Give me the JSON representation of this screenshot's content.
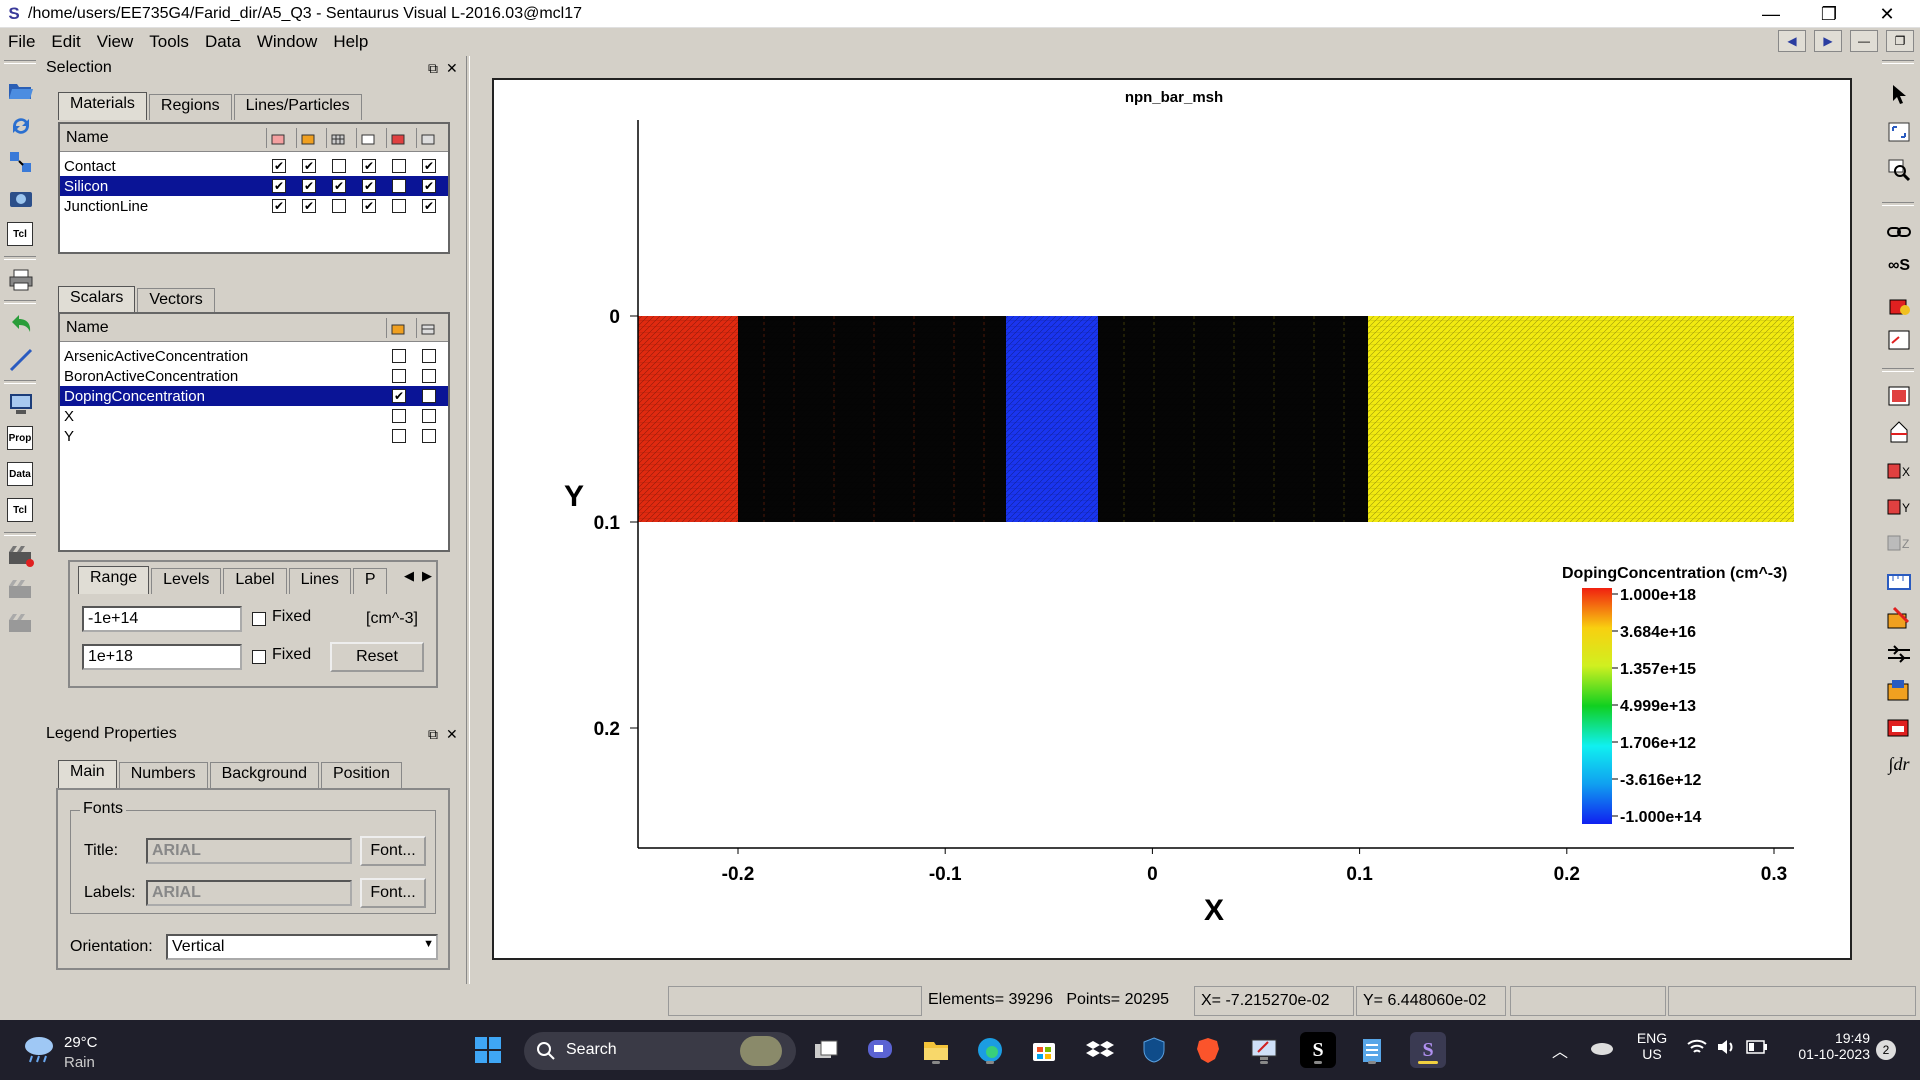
{
  "window": {
    "title": "/home/users/EE735G4/Farid_dir/A5_Q3 - Sentaurus Visual L-2016.03@mcl17",
    "app_glyph": "S",
    "minimize": "—",
    "restore": "❐",
    "close": "✕"
  },
  "menu": [
    "File",
    "Edit",
    "View",
    "Tools",
    "Data",
    "Window",
    "Help"
  ],
  "selection_panel": {
    "title": "Selection",
    "tabs": [
      "Materials",
      "Regions",
      "Lines/Particles"
    ],
    "materials": {
      "header_name": "Name",
      "rows": [
        {
          "name": "Contact",
          "checks": [
            true,
            true,
            false,
            true,
            false,
            true
          ],
          "selected": false
        },
        {
          "name": "Silicon",
          "checks": [
            true,
            true,
            true,
            true,
            false,
            true
          ],
          "selected": true
        },
        {
          "name": "JunctionLine",
          "checks": [
            true,
            true,
            false,
            true,
            false,
            true
          ],
          "selected": false
        }
      ]
    },
    "scalar_tabs": [
      "Scalars",
      "Vectors"
    ],
    "scalars": {
      "header_name": "Name",
      "rows": [
        {
          "name": "ArsenicActiveConcentration",
          "checks": [
            false,
            false
          ],
          "selected": false
        },
        {
          "name": "BoronActiveConcentration",
          "checks": [
            false,
            false
          ],
          "selected": false
        },
        {
          "name": "DopingConcentration",
          "checks": [
            true,
            false
          ],
          "selected": true
        },
        {
          "name": "X",
          "checks": [
            false,
            false
          ],
          "selected": false
        },
        {
          "name": "Y",
          "checks": [
            false,
            false
          ],
          "selected": false
        }
      ]
    },
    "range_tabs": [
      "Range",
      "Levels",
      "Label",
      "Lines",
      "P"
    ],
    "range": {
      "min": "-1e+14",
      "max": "1e+18",
      "fixed_label": "Fixed",
      "unit": "[cm^-3]",
      "reset": "Reset"
    }
  },
  "legend_panel": {
    "title": "Legend Properties",
    "tabs": [
      "Main",
      "Numbers",
      "Background",
      "Position"
    ],
    "fonts_group": "Fonts",
    "title_label": "Title:",
    "title_font": "ARIAL",
    "labels_label": "Labels:",
    "labels_font": "ARIAL",
    "font_button": "Font...",
    "orientation_label": "Orientation:",
    "orientation": "Vertical"
  },
  "left_toolbar": {
    "prop": "Prop",
    "data": "Data",
    "tcl": "Tcl"
  },
  "plot": {
    "title": "npn_bar_msh",
    "xlabel": "X",
    "ylabel": "Y",
    "x_ticks": [
      "-0.2",
      "-0.1",
      "0",
      "0.1",
      "0.2",
      "0.3"
    ],
    "y_ticks": [
      "0",
      "0.1",
      "0.2"
    ],
    "legend_title": "DopingConcentration (cm^-3)",
    "legend_labels": [
      "1.000e+18",
      "3.684e+16",
      "1.357e+15",
      "4.999e+13",
      "1.706e+12",
      "-3.616e+12",
      "-1.000e+14"
    ],
    "colors": {
      "red": "#e02a10",
      "blue": "#1a35f0",
      "yellow": "#f2ea10",
      "black": "#050505"
    }
  },
  "status": {
    "elements": "Elements= 39296",
    "points": "Points= 20295",
    "x": "X= -7.215270e-02",
    "y": "Y= 6.448060e-02"
  },
  "taskbar": {
    "temp": "29°C",
    "weather": "Rain",
    "search": "Search",
    "lang1": "ENG",
    "lang2": "US",
    "time": "19:49",
    "date": "01-10-2023",
    "badge": "2"
  }
}
